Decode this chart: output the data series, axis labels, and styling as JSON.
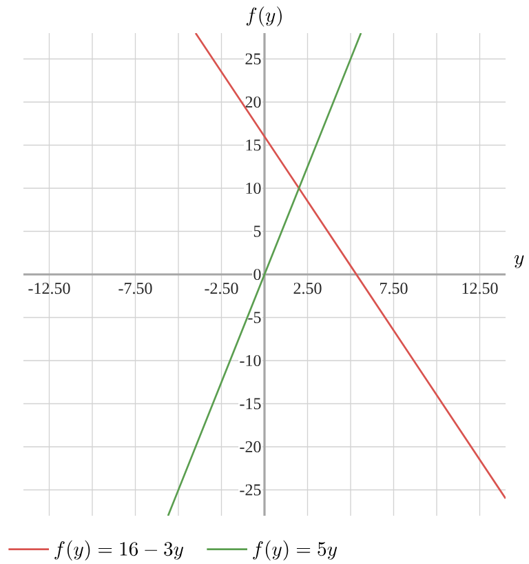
{
  "chart_data": {
    "type": "line",
    "xlabel": "y",
    "ylabel": "f(y)",
    "series": [
      {
        "name": "f(y) = 16 - 3y",
        "color": "#d9534f",
        "x": [
          -4,
          14
        ],
        "values": [
          28,
          -26
        ]
      },
      {
        "name": "f(y) = 5y",
        "color": "#5a9e4f",
        "x": [
          -5.6,
          5.6
        ],
        "values": [
          -28,
          28
        ]
      }
    ],
    "xlim": [
      -14,
      14
    ],
    "ylim": [
      -28,
      28
    ],
    "xticks": [
      {
        "value": -12.5,
        "label": "-12.50"
      },
      {
        "value": -10,
        "label": null
      },
      {
        "value": -7.5,
        "label": "-7.50"
      },
      {
        "value": -5,
        "label": null
      },
      {
        "value": -2.5,
        "label": "-2.50"
      },
      {
        "value": 0,
        "label": null
      },
      {
        "value": 2.5,
        "label": "2.50"
      },
      {
        "value": 5,
        "label": null
      },
      {
        "value": 7.5,
        "label": "7.50"
      },
      {
        "value": 10,
        "label": null
      },
      {
        "value": 12.5,
        "label": "12.50"
      }
    ],
    "yticks": [
      -25,
      -20,
      -15,
      -10,
      -5,
      0,
      5,
      10,
      15,
      20,
      25
    ],
    "grid": true,
    "legend": "bottom left",
    "marker": "none",
    "line_style": "solid"
  }
}
